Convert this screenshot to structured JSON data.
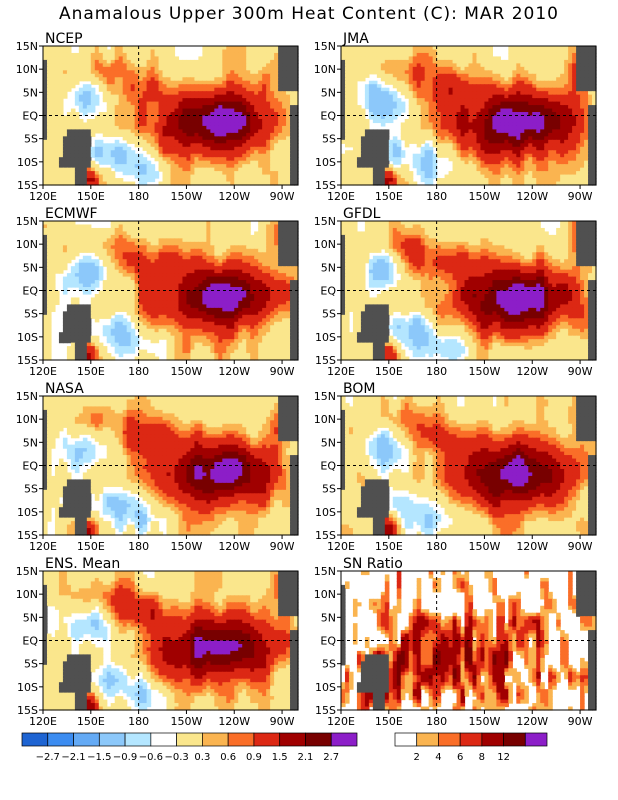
{
  "title": "Anamalous Upper 300m Heat Content (C): MAR 2010",
  "chart_data": [
    {
      "type": "heatmap",
      "title": "NCEP",
      "xlabels": [
        "120E",
        "150E",
        "180",
        "150W",
        "120W",
        "90W"
      ],
      "ylabels": [
        "15N",
        "10N",
        "5N",
        "EQ",
        "5S",
        "10S",
        "15S"
      ],
      "xlim": [
        "120E",
        "80W"
      ],
      "ylim": [
        "15S",
        "15N"
      ],
      "grid": "dashed lines at 180 and EQ",
      "features": [
        {
          "name": "western negative anomaly",
          "value": -1.5
        },
        {
          "name": "eastern positive anomaly core",
          "value": 2.1
        }
      ]
    },
    {
      "type": "heatmap",
      "title": "JMA",
      "xlabels": [
        "120E",
        "150E",
        "180",
        "150W",
        "120W",
        "90W"
      ],
      "ylabels": [
        "15N",
        "10N",
        "5N",
        "EQ",
        "5S",
        "10S",
        "15S"
      ],
      "xlim": [
        "120E",
        "80W"
      ],
      "ylim": [
        "15S",
        "15N"
      ],
      "grid": "dashed lines at 180 and EQ",
      "features": [
        {
          "name": "western negative anomaly",
          "value": -1.5
        },
        {
          "name": "eastern positive anomaly core",
          "value": 2.1
        }
      ]
    },
    {
      "type": "heatmap",
      "title": "ECMWF",
      "xlabels": [
        "120E",
        "150E",
        "180",
        "150W",
        "120W",
        "90W"
      ],
      "ylabels": [
        "15N",
        "10N",
        "5N",
        "EQ",
        "5S",
        "10S",
        "15S"
      ],
      "xlim": [
        "120E",
        "80W"
      ],
      "ylim": [
        "15S",
        "15N"
      ],
      "grid": "dashed lines at 180 and EQ",
      "features": [
        {
          "name": "western negative anomaly",
          "value": -1.5
        },
        {
          "name": "eastern positive anomaly core",
          "value": 2.1
        }
      ]
    },
    {
      "type": "heatmap",
      "title": "GFDL",
      "xlabels": [
        "120E",
        "150E",
        "180",
        "150W",
        "120W",
        "90W"
      ],
      "ylabels": [
        "15N",
        "10N",
        "5N",
        "EQ",
        "5S",
        "10S",
        "15S"
      ],
      "xlim": [
        "120E",
        "80W"
      ],
      "ylim": [
        "15S",
        "15N"
      ],
      "grid": "dashed lines at 180 and EQ",
      "features": [
        {
          "name": "western negative anomaly",
          "value": -1.5
        },
        {
          "name": "eastern positive anomaly core",
          "value": 2.1
        }
      ]
    },
    {
      "type": "heatmap",
      "title": "NASA",
      "xlabels": [
        "120E",
        "150E",
        "180",
        "150W",
        "120W",
        "90W"
      ],
      "ylabels": [
        "15N",
        "10N",
        "5N",
        "EQ",
        "5S",
        "10S",
        "15S"
      ],
      "xlim": [
        "120E",
        "80W"
      ],
      "ylim": [
        "15S",
        "15N"
      ],
      "grid": "dashed lines at 180 and EQ",
      "features": [
        {
          "name": "western negative anomaly",
          "value": -1.5
        },
        {
          "name": "eastern positive anomaly core",
          "value": 2.1
        }
      ]
    },
    {
      "type": "heatmap",
      "title": "BOM",
      "xlabels": [
        "120E",
        "150E",
        "180",
        "150W",
        "120W",
        "90W"
      ],
      "ylabels": [
        "15N",
        "10N",
        "5N",
        "EQ",
        "5S",
        "10S",
        "15S"
      ],
      "xlim": [
        "120E",
        "80W"
      ],
      "ylim": [
        "15S",
        "15N"
      ],
      "grid": "dashed lines at 180 and EQ",
      "features": [
        {
          "name": "western negative anomaly",
          "value": -1.5
        },
        {
          "name": "eastern positive anomaly core",
          "value": 2.1
        }
      ]
    },
    {
      "type": "heatmap",
      "title": "ENS. Mean",
      "xlabels": [
        "120E",
        "150E",
        "180",
        "150W",
        "120W",
        "90W"
      ],
      "ylabels": [
        "15N",
        "10N",
        "5N",
        "EQ",
        "5S",
        "10S",
        "15S"
      ],
      "xlim": [
        "120E",
        "80W"
      ],
      "ylim": [
        "15S",
        "15N"
      ],
      "grid": "dashed lines at 180 and EQ",
      "features": [
        {
          "name": "western negative anomaly",
          "value": -1.5
        },
        {
          "name": "eastern positive anomaly core",
          "value": 2.1
        }
      ]
    },
    {
      "type": "heatmap",
      "title": "SN Ratio",
      "xlabels": [
        "120E",
        "150E",
        "180",
        "150W",
        "120W",
        "90W"
      ],
      "ylabels": [
        "15N",
        "10N",
        "5N",
        "EQ",
        "5S",
        "10S",
        "15S"
      ],
      "xlim": [
        "120E",
        "80W"
      ],
      "ylim": [
        "15S",
        "15N"
      ],
      "grid": "dashed lines at 180 and EQ",
      "features": [
        {
          "name": "high signal-to-noise central Pacific",
          "value": 12
        }
      ]
    }
  ],
  "colorbars": {
    "anomaly": {
      "colors": [
        "#1e64d2",
        "#3c8cf0",
        "#64aaf5",
        "#8cc8fa",
        "#b4e6ff",
        "#ffffff",
        "#fae68c",
        "#fab450",
        "#fa6e28",
        "#dc2814",
        "#a00000",
        "#780000",
        "#8c1ec8"
      ],
      "labels": [
        "−2.7",
        "−2.1",
        "−1.5",
        "−0.9",
        "−0.6",
        "−0.3",
        "0.3",
        "0.6",
        "0.9",
        "1.5",
        "2.1",
        "2.7"
      ]
    },
    "snratio": {
      "colors": [
        "#ffffff",
        "#fab450",
        "#fa6e28",
        "#dc2814",
        "#a00000",
        "#780000",
        "#8c1ec8"
      ],
      "labels": [
        "2",
        "4",
        "6",
        "8",
        "12"
      ]
    }
  },
  "colors": {
    "land": "#505050",
    "background": "#ffffff"
  }
}
